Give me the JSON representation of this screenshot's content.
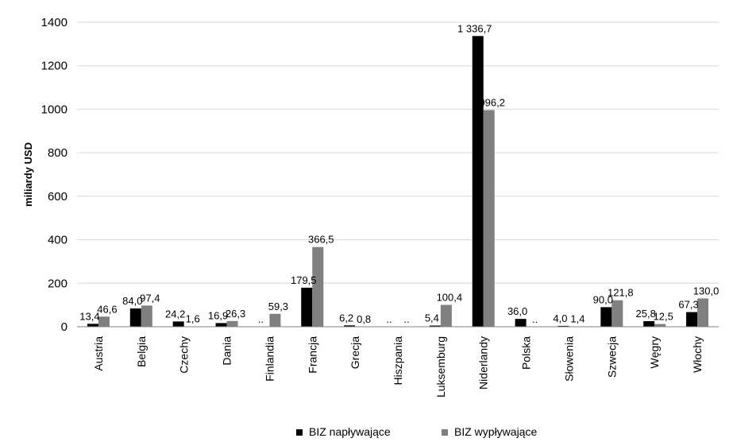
{
  "chart_data": {
    "type": "bar",
    "title": "",
    "xlabel": "",
    "ylabel": "miliardy USD",
    "ylim": [
      0,
      1400
    ],
    "yticks": [
      0,
      200,
      400,
      600,
      800,
      1000,
      1200,
      1400
    ],
    "grid": true,
    "legend_position": "bottom",
    "categories": [
      "Austria",
      "Belgia",
      "Czechy",
      "Dania",
      "Finlandia",
      "Francja",
      "Grecja",
      "Hiszpania",
      "Luksemburg",
      "Niderlandy",
      "Polska",
      "Słowenia",
      "Szwecja",
      "Węgry",
      "Włochy"
    ],
    "series": [
      {
        "name": "BIZ napływające",
        "color": "#000000",
        "values": [
          13.4,
          84.0,
          24.2,
          16.9,
          null,
          179.5,
          6.2,
          null,
          5.4,
          1336.7,
          36.0,
          4.0,
          90.0,
          25.8,
          67.3
        ],
        "labels": [
          "13,4",
          "84,0",
          "24,2",
          "16,9",
          "..",
          "179,5",
          "6,2",
          "..",
          "5,4",
          "1 336,7",
          "36,0",
          "4,0",
          "90,0",
          "25,8",
          "67,3"
        ]
      },
      {
        "name": "BIZ wypływające",
        "color": "#808080",
        "values": [
          46.6,
          97.4,
          1.6,
          26.3,
          59.3,
          366.5,
          0.8,
          null,
          100.4,
          996.2,
          null,
          1.4,
          121.8,
          12.5,
          130.0
        ],
        "labels": [
          "46,6",
          "97,4",
          "1,6",
          "26,3",
          "59,3",
          "366,5",
          "0,8",
          "..",
          "100,4",
          "996,2",
          "..",
          "1,4",
          "121,8",
          "12,5",
          "130,0"
        ]
      }
    ]
  }
}
